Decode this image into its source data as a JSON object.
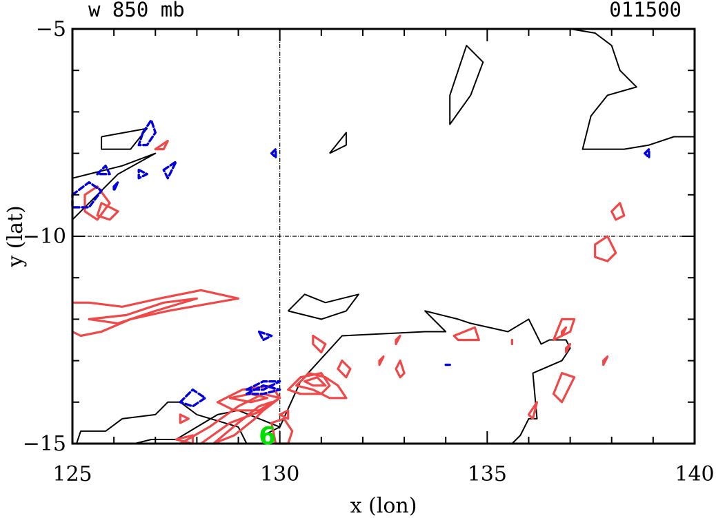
{
  "header": {
    "left": "w 850 mb",
    "right": "011500"
  },
  "chart_data": {
    "type": "contour",
    "title": "w 850 mb",
    "timestamp": "011500",
    "xlabel": "x (lon)",
    "ylabel": "y (lat)",
    "xlim": [
      125,
      140
    ],
    "ylim": [
      -15,
      -5
    ],
    "xticks": [
      125,
      130,
      135,
      140
    ],
    "yticks": [
      -15,
      -10,
      -5
    ],
    "xtick_labels": [
      "125",
      "130",
      "135",
      "140"
    ],
    "ytick_labels": [
      "−15",
      "−10",
      "−5"
    ],
    "reference_lines": {
      "x": 130,
      "y": -10
    },
    "marker": {
      "label": "6",
      "x": 129.7,
      "y": -14.8,
      "color": "#00e000"
    },
    "colors": {
      "positive": "#f04848",
      "negative": "#0000e0",
      "coast": "#000000",
      "marker": "#00e000"
    },
    "coast": [
      [
        [
          125.0,
          -8.6
        ],
        [
          126.2,
          -8.3
        ],
        [
          127.0,
          -8.0
        ],
        [
          126.1,
          -8.5
        ],
        [
          125.0,
          -9.6
        ]
      ],
      [
        [
          125.7,
          -7.6
        ],
        [
          126.8,
          -7.4
        ],
        [
          126.4,
          -7.9
        ],
        [
          125.7,
          -7.9
        ],
        [
          125.7,
          -7.6
        ]
      ],
      [
        [
          134.1,
          -6.6
        ],
        [
          134.5,
          -5.4
        ],
        [
          134.9,
          -5.8
        ],
        [
          134.6,
          -6.6
        ],
        [
          134.1,
          -7.3
        ],
        [
          134.1,
          -6.6
        ]
      ],
      [
        [
          131.2,
          -8.0
        ],
        [
          131.6,
          -7.5
        ],
        [
          131.6,
          -7.8
        ],
        [
          131.2,
          -8.0
        ]
      ],
      [
        [
          137.0,
          -5.0
        ],
        [
          137.6,
          -5.1
        ],
        [
          138.0,
          -5.4
        ],
        [
          138.2,
          -6.0
        ],
        [
          138.6,
          -6.4
        ],
        [
          137.9,
          -6.6
        ],
        [
          137.5,
          -7.1
        ],
        [
          137.3,
          -7.9
        ],
        [
          138.3,
          -7.9
        ],
        [
          138.9,
          -7.8
        ],
        [
          139.5,
          -7.6
        ],
        [
          140.0,
          -7.6
        ]
      ],
      [
        [
          130.2,
          -11.8
        ],
        [
          130.6,
          -11.4
        ],
        [
          131.1,
          -11.6
        ],
        [
          131.9,
          -11.4
        ],
        [
          131.6,
          -11.8
        ],
        [
          131.0,
          -12.0
        ],
        [
          130.2,
          -11.8
        ]
      ],
      [
        [
          130.0,
          -14.6
        ],
        [
          129.0,
          -14.2
        ],
        [
          128.5,
          -14.3
        ],
        [
          128.0,
          -14.6
        ],
        [
          127.5,
          -14.9
        ],
        [
          126.9,
          -14.9
        ],
        [
          126.5,
          -15.0
        ]
      ],
      [
        [
          125.1,
          -15.0
        ],
        [
          125.2,
          -14.7
        ],
        [
          125.8,
          -14.7
        ],
        [
          126.2,
          -14.4
        ],
        [
          127.0,
          -14.3
        ],
        [
          127.3,
          -14.0
        ],
        [
          127.6,
          -14.0
        ],
        [
          128.0,
          -14.3
        ],
        [
          129.0,
          -14.6
        ],
        [
          129.2,
          -15.0
        ]
      ],
      [
        [
          129.6,
          -14.8
        ],
        [
          130.0,
          -14.6
        ],
        [
          130.5,
          -13.5
        ],
        [
          131.5,
          -12.4
        ],
        [
          133.5,
          -12.3
        ],
        [
          134.0,
          -12.3
        ],
        [
          133.5,
          -11.8
        ],
        [
          134.3,
          -12.0
        ],
        [
          134.6,
          -12.1
        ],
        [
          135.5,
          -12.3
        ],
        [
          136.0,
          -12.0
        ],
        [
          136.3,
          -12.6
        ],
        [
          136.5,
          -12.5
        ],
        [
          136.9,
          -12.5
        ],
        [
          137.0,
          -12.7
        ],
        [
          136.8,
          -13.0
        ],
        [
          136.1,
          -13.3
        ],
        [
          136.2,
          -14.4
        ],
        [
          136.0,
          -14.4
        ],
        [
          135.8,
          -14.8
        ],
        [
          135.6,
          -15.0
        ]
      ]
    ],
    "positive_contours": [
      [
        [
          125.0,
          -11.6
        ],
        [
          125.4,
          -11.6
        ],
        [
          126.2,
          -11.7
        ],
        [
          127.1,
          -11.5
        ],
        [
          128.1,
          -11.3
        ],
        [
          129.0,
          -11.5
        ],
        [
          127.3,
          -11.8
        ],
        [
          126.4,
          -12.0
        ],
        [
          125.7,
          -12.3
        ],
        [
          125.2,
          -12.4
        ],
        [
          125.0,
          -12.3
        ]
      ],
      [
        [
          125.4,
          -12.0
        ],
        [
          126.3,
          -11.9
        ],
        [
          127.2,
          -11.6
        ],
        [
          128.0,
          -11.5
        ],
        [
          127.0,
          -11.8
        ],
        [
          126.1,
          -12.1
        ],
        [
          125.4,
          -12.0
        ]
      ],
      [
        [
          125.3,
          -9.0
        ],
        [
          125.6,
          -8.8
        ],
        [
          125.9,
          -9.2
        ],
        [
          125.6,
          -9.6
        ],
        [
          125.3,
          -9.4
        ],
        [
          125.3,
          -9.0
        ]
      ],
      [
        [
          125.7,
          -9.2
        ],
        [
          126.1,
          -9.4
        ],
        [
          125.9,
          -9.6
        ],
        [
          125.6,
          -9.5
        ],
        [
          125.7,
          -9.2
        ]
      ],
      [
        [
          127.0,
          -7.9
        ],
        [
          127.3,
          -7.7
        ],
        [
          127.2,
          -7.9
        ],
        [
          127.0,
          -7.9
        ]
      ],
      [
        [
          127.6,
          -15.0
        ],
        [
          128.3,
          -14.6
        ],
        [
          129.0,
          -14.1
        ],
        [
          129.6,
          -13.8
        ],
        [
          130.0,
          -13.9
        ],
        [
          129.6,
          -14.2
        ],
        [
          128.8,
          -14.5
        ],
        [
          128.1,
          -15.0
        ]
      ],
      [
        [
          128.4,
          -15.0
        ],
        [
          129.0,
          -14.5
        ],
        [
          129.5,
          -14.1
        ],
        [
          129.8,
          -14.0
        ],
        [
          129.4,
          -14.4
        ],
        [
          128.9,
          -14.8
        ],
        [
          128.4,
          -15.0
        ]
      ],
      [
        [
          128.5,
          -14.0
        ],
        [
          129.1,
          -13.7
        ],
        [
          129.8,
          -13.6
        ],
        [
          130.0,
          -13.9
        ],
        [
          129.5,
          -14.2
        ],
        [
          128.9,
          -14.2
        ],
        [
          128.5,
          -14.0
        ]
      ],
      [
        [
          128.8,
          -13.9
        ],
        [
          129.3,
          -13.8
        ],
        [
          129.7,
          -13.9
        ],
        [
          129.3,
          -14.0
        ],
        [
          128.8,
          -13.9
        ]
      ],
      [
        [
          130.4,
          -13.6
        ],
        [
          130.7,
          -13.3
        ],
        [
          131.1,
          -13.4
        ],
        [
          131.4,
          -13.6
        ],
        [
          131.6,
          -13.9
        ],
        [
          131.2,
          -13.9
        ],
        [
          130.8,
          -13.7
        ],
        [
          130.4,
          -13.6
        ]
      ],
      [
        [
          130.6,
          -13.5
        ],
        [
          130.9,
          -13.4
        ],
        [
          131.1,
          -13.6
        ],
        [
          130.8,
          -13.6
        ],
        [
          130.6,
          -13.5
        ]
      ],
      [
        [
          130.2,
          -13.7
        ],
        [
          130.5,
          -13.4
        ],
        [
          131.0,
          -13.3
        ],
        [
          131.2,
          -13.6
        ],
        [
          131.0,
          -13.8
        ],
        [
          130.5,
          -13.8
        ],
        [
          130.2,
          -13.7
        ]
      ],
      [
        [
          129.8,
          -14.5
        ],
        [
          130.1,
          -14.4
        ],
        [
          130.3,
          -14.7
        ],
        [
          130.2,
          -15.0
        ],
        [
          129.9,
          -15.0
        ],
        [
          129.8,
          -14.5
        ]
      ],
      [
        [
          130.0,
          -14.3
        ],
        [
          130.2,
          -14.2
        ],
        [
          130.2,
          -14.4
        ],
        [
          130.0,
          -14.3
        ]
      ],
      [
        [
          127.5,
          -14.9
        ],
        [
          127.9,
          -14.8
        ],
        [
          127.9,
          -15.0
        ],
        [
          127.5,
          -14.9
        ]
      ],
      [
        [
          127.6,
          -14.3
        ],
        [
          127.8,
          -14.4
        ],
        [
          127.6,
          -14.5
        ],
        [
          127.6,
          -14.3
        ]
      ],
      [
        [
          130.8,
          -12.4
        ],
        [
          131.1,
          -12.6
        ],
        [
          131.0,
          -12.8
        ],
        [
          130.8,
          -12.6
        ],
        [
          130.8,
          -12.4
        ]
      ],
      [
        [
          131.5,
          -13.0
        ],
        [
          131.7,
          -13.2
        ],
        [
          131.6,
          -13.4
        ],
        [
          131.4,
          -13.2
        ],
        [
          131.5,
          -13.0
        ]
      ],
      [
        [
          132.4,
          -13.0
        ],
        [
          132.5,
          -12.9
        ],
        [
          132.4,
          -13.1
        ],
        [
          132.4,
          -13.0
        ]
      ],
      [
        [
          132.9,
          -13.0
        ],
        [
          133.0,
          -13.3
        ],
        [
          132.9,
          -13.4
        ],
        [
          132.8,
          -13.2
        ],
        [
          132.9,
          -13.0
        ]
      ],
      [
        [
          132.8,
          -12.5
        ],
        [
          132.9,
          -12.4
        ],
        [
          132.8,
          -12.6
        ],
        [
          132.8,
          -12.5
        ]
      ],
      [
        [
          134.2,
          -12.4
        ],
        [
          134.7,
          -12.2
        ],
        [
          134.8,
          -12.5
        ],
        [
          134.3,
          -12.5
        ],
        [
          134.2,
          -12.4
        ]
      ],
      [
        [
          135.6,
          -12.5
        ],
        [
          135.6,
          -12.6
        ]
      ],
      [
        [
          136.6,
          -12.5
        ],
        [
          136.8,
          -12.0
        ],
        [
          137.1,
          -12.0
        ],
        [
          137.0,
          -12.3
        ],
        [
          136.6,
          -12.5
        ]
      ],
      [
        [
          136.6,
          -13.8
        ],
        [
          136.8,
          -13.3
        ],
        [
          137.1,
          -13.4
        ],
        [
          136.9,
          -13.8
        ],
        [
          136.8,
          -14.0
        ],
        [
          136.6,
          -13.8
        ]
      ],
      [
        [
          136.8,
          -12.3
        ],
        [
          136.9,
          -12.2
        ],
        [
          136.8,
          -12.4
        ],
        [
          136.8,
          -12.3
        ]
      ],
      [
        [
          136.0,
          -14.3
        ],
        [
          136.2,
          -14.0
        ],
        [
          136.1,
          -14.4
        ],
        [
          136.0,
          -14.3
        ]
      ],
      [
        [
          136.9,
          -12.7
        ],
        [
          137.0,
          -12.6
        ],
        [
          136.9,
          -12.8
        ],
        [
          136.9,
          -12.7
        ]
      ],
      [
        [
          137.8,
          -13.0
        ],
        [
          137.9,
          -12.9
        ],
        [
          137.8,
          -13.1
        ],
        [
          137.8,
          -13.0
        ]
      ],
      [
        [
          137.6,
          -10.2
        ],
        [
          137.9,
          -10.0
        ],
        [
          138.1,
          -10.4
        ],
        [
          137.9,
          -10.6
        ],
        [
          137.6,
          -10.5
        ],
        [
          137.6,
          -10.2
        ]
      ],
      [
        [
          138.0,
          -9.4
        ],
        [
          138.2,
          -9.2
        ],
        [
          138.3,
          -9.5
        ],
        [
          138.1,
          -9.6
        ],
        [
          138.0,
          -9.4
        ]
      ]
    ],
    "negative_contours": [
      [
        [
          126.7,
          -7.5
        ],
        [
          126.9,
          -7.2
        ],
        [
          127.0,
          -7.5
        ],
        [
          126.8,
          -7.8
        ],
        [
          126.6,
          -7.8
        ],
        [
          126.7,
          -7.5
        ]
      ],
      [
        [
          129.8,
          -8.0
        ],
        [
          129.9,
          -7.9
        ],
        [
          129.9,
          -8.1
        ],
        [
          129.8,
          -8.0
        ]
      ],
      [
        [
          127.2,
          -8.4
        ],
        [
          127.5,
          -8.2
        ],
        [
          127.3,
          -8.6
        ],
        [
          127.2,
          -8.4
        ]
      ],
      [
        [
          126.6,
          -8.4
        ],
        [
          126.8,
          -8.5
        ],
        [
          126.6,
          -8.6
        ],
        [
          126.6,
          -8.4
        ]
      ],
      [
        [
          125.0,
          -9.0
        ],
        [
          125.4,
          -8.7
        ],
        [
          125.7,
          -8.9
        ],
        [
          125.4,
          -9.3
        ],
        [
          125.0,
          -9.3
        ],
        [
          125.0,
          -9.0
        ]
      ],
      [
        [
          125.6,
          -8.5
        ],
        [
          125.8,
          -8.3
        ],
        [
          125.9,
          -8.5
        ],
        [
          125.6,
          -8.5
        ]
      ],
      [
        [
          126.0,
          -8.8
        ],
        [
          126.1,
          -8.7
        ],
        [
          126.0,
          -8.9
        ],
        [
          126.0,
          -8.8
        ]
      ],
      [
        [
          129.5,
          -12.3
        ],
        [
          129.8,
          -12.4
        ],
        [
          129.6,
          -12.5
        ],
        [
          129.5,
          -12.3
        ]
      ],
      [
        [
          127.6,
          -14.0
        ],
        [
          127.9,
          -13.7
        ],
        [
          128.2,
          -13.9
        ],
        [
          127.9,
          -14.1
        ],
        [
          127.6,
          -14.0
        ]
      ],
      [
        [
          129.2,
          -13.7
        ],
        [
          129.6,
          -13.5
        ],
        [
          130.0,
          -13.5
        ],
        [
          129.6,
          -13.7
        ],
        [
          129.2,
          -13.7
        ]
      ],
      [
        [
          129.2,
          -13.8
        ],
        [
          129.6,
          -13.6
        ],
        [
          130.0,
          -13.7
        ],
        [
          129.6,
          -13.8
        ],
        [
          129.2,
          -13.8
        ]
      ],
      [
        [
          134.0,
          -13.1
        ],
        [
          134.1,
          -13.1
        ]
      ],
      [
        [
          138.8,
          -8.0
        ],
        [
          138.9,
          -7.9
        ],
        [
          138.9,
          -8.1
        ],
        [
          138.8,
          -8.0
        ]
      ]
    ]
  }
}
